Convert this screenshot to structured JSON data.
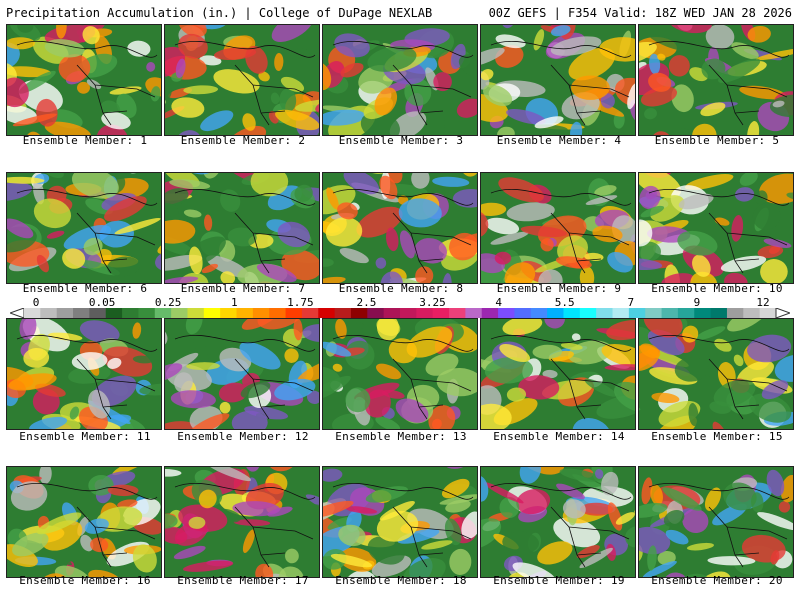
{
  "header": {
    "left": "Precipitation Accumulation (in.) | College of DuPage NEXLAB",
    "right": "00Z GEFS | F354 Valid: 18Z WED JAN 28 2026"
  },
  "panels": [
    {
      "label": "Ensemble Member: 1"
    },
    {
      "label": "Ensemble Member: 2"
    },
    {
      "label": "Ensemble Member: 3"
    },
    {
      "label": "Ensemble Member: 4"
    },
    {
      "label": "Ensemble Member: 5"
    },
    {
      "label": "Ensemble Member: 6"
    },
    {
      "label": "Ensemble Member: 7"
    },
    {
      "label": "Ensemble Member: 8"
    },
    {
      "label": "Ensemble Member: 9"
    },
    {
      "label": "Ensemble Member: 10"
    },
    {
      "label": "Ensemble Member: 11"
    },
    {
      "label": "Ensemble Member: 12"
    },
    {
      "label": "Ensemble Member: 13"
    },
    {
      "label": "Ensemble Member: 14"
    },
    {
      "label": "Ensemble Member: 15"
    },
    {
      "label": "Ensemble Member: 16"
    },
    {
      "label": "Ensemble Member: 17"
    },
    {
      "label": "Ensemble Member: 18"
    },
    {
      "label": "Ensemble Member: 19"
    },
    {
      "label": "Ensemble Member: 20"
    }
  ],
  "legend": {
    "ticks": [
      "0",
      "0.05",
      "0.25",
      "1",
      "1.75",
      "2.5",
      "3.25",
      "4",
      "5.5",
      "7",
      "9",
      "12"
    ],
    "colors": [
      "#d9d9d9",
      "#bdbdbd",
      "#9e9e9e",
      "#7f7f7f",
      "#5e5e5e",
      "#1b5e20",
      "#2e7d32",
      "#388e3c",
      "#66bb6a",
      "#9ccc65",
      "#cddc39",
      "#ffff00",
      "#ffd600",
      "#ffb300",
      "#ff8f00",
      "#ff6d00",
      "#ff3d00",
      "#e53935",
      "#d50000",
      "#b71c1c",
      "#8e0000",
      "#880e4f",
      "#ad1457",
      "#c2185b",
      "#d81b60",
      "#e91e63",
      "#ec407a",
      "#ba68c8",
      "#9c27b0",
      "#7c4dff",
      "#536dfe",
      "#448aff",
      "#00b0ff",
      "#00e5ff",
      "#18ffff",
      "#80deea",
      "#b2ebf2",
      "#4dd0e1",
      "#80cbc4",
      "#4db6ac",
      "#26a69a",
      "#00897b",
      "#00796b",
      "#9e9e9e",
      "#bdbdbd",
      "#d6d6d6"
    ]
  }
}
